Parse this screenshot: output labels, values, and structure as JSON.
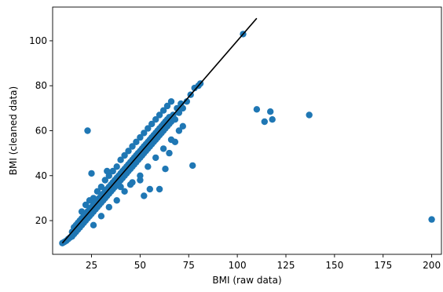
{
  "chart_data": {
    "type": "scatter",
    "title": "",
    "xlabel": "BMI (raw data)",
    "ylabel": "BMI (cleaned data)",
    "xlim": [
      5,
      205
    ],
    "ylim": [
      5,
      115
    ],
    "xticks": [
      25,
      50,
      75,
      100,
      125,
      150,
      175,
      200
    ],
    "yticks": [
      20,
      40,
      60,
      80,
      100
    ],
    "grid": false,
    "colors": {
      "points": "#1f77b4",
      "line": "#000000",
      "axes": "#000000"
    },
    "reference_line": {
      "x": [
        10,
        110
      ],
      "y": [
        10,
        110
      ]
    },
    "series": [
      {
        "values": [
          [
            10,
            10
          ],
          [
            11,
            10.5
          ],
          [
            12,
            11
          ],
          [
            13,
            11.8
          ],
          [
            14,
            12.5
          ],
          [
            15,
            13
          ],
          [
            15,
            15
          ],
          [
            16,
            14
          ],
          [
            16,
            17
          ],
          [
            17,
            15
          ],
          [
            17,
            18
          ],
          [
            18,
            16
          ],
          [
            18,
            19
          ],
          [
            19,
            17
          ],
          [
            19,
            20
          ],
          [
            20,
            18
          ],
          [
            20,
            21
          ],
          [
            21,
            19
          ],
          [
            21,
            22
          ],
          [
            22,
            20
          ],
          [
            22,
            23
          ],
          [
            23,
            21
          ],
          [
            23,
            24
          ],
          [
            24,
            22
          ],
          [
            24,
            25
          ],
          [
            25,
            23
          ],
          [
            25,
            26
          ],
          [
            26,
            24
          ],
          [
            26,
            27
          ],
          [
            27,
            25
          ],
          [
            27,
            28
          ],
          [
            28,
            26
          ],
          [
            28,
            29
          ],
          [
            29,
            27
          ],
          [
            29,
            30
          ],
          [
            30,
            28
          ],
          [
            30,
            31
          ],
          [
            31,
            29
          ],
          [
            31,
            32
          ],
          [
            32,
            30
          ],
          [
            32,
            33
          ],
          [
            33,
            31
          ],
          [
            33,
            34
          ],
          [
            34,
            32
          ],
          [
            34,
            35
          ],
          [
            35,
            33
          ],
          [
            35,
            36
          ],
          [
            36,
            34
          ],
          [
            36,
            37
          ],
          [
            37,
            35
          ],
          [
            37,
            38
          ],
          [
            38,
            36
          ],
          [
            38,
            39
          ],
          [
            39,
            37
          ],
          [
            39,
            40
          ],
          [
            40,
            38
          ],
          [
            40,
            41
          ],
          [
            41,
            39
          ],
          [
            41,
            42
          ],
          [
            42,
            40
          ],
          [
            42,
            43
          ],
          [
            43,
            41
          ],
          [
            43,
            44
          ],
          [
            44,
            42
          ],
          [
            44,
            45
          ],
          [
            45,
            43
          ],
          [
            45,
            46
          ],
          [
            46,
            44
          ],
          [
            46,
            47
          ],
          [
            47,
            45
          ],
          [
            47,
            48
          ],
          [
            48,
            46
          ],
          [
            48,
            49
          ],
          [
            49,
            47
          ],
          [
            49,
            50
          ],
          [
            50,
            48
          ],
          [
            50,
            51
          ],
          [
            51,
            49
          ],
          [
            51,
            52
          ],
          [
            52,
            50
          ],
          [
            52,
            53
          ],
          [
            53,
            51
          ],
          [
            53,
            54
          ],
          [
            54,
            52
          ],
          [
            54,
            55
          ],
          [
            55,
            53
          ],
          [
            55,
            56
          ],
          [
            56,
            54
          ],
          [
            56,
            57
          ],
          [
            57,
            55
          ],
          [
            57,
            58
          ],
          [
            58,
            56
          ],
          [
            58,
            59
          ],
          [
            59,
            57
          ],
          [
            59,
            60
          ],
          [
            60,
            58
          ],
          [
            60,
            61
          ],
          [
            61,
            59
          ],
          [
            61,
            62
          ],
          [
            62,
            60
          ],
          [
            62,
            63
          ],
          [
            63,
            61
          ],
          [
            63,
            64
          ],
          [
            64,
            62
          ],
          [
            64,
            65
          ],
          [
            65,
            63
          ],
          [
            65,
            66
          ],
          [
            66,
            64
          ],
          [
            67,
            67
          ],
          [
            68,
            65
          ],
          [
            69,
            70
          ],
          [
            70,
            68
          ],
          [
            71,
            72
          ],
          [
            72,
            70
          ],
          [
            74,
            73
          ],
          [
            76,
            76
          ],
          [
            78,
            79
          ],
          [
            80,
            80
          ],
          [
            81,
            81
          ],
          [
            20,
            24
          ],
          [
            22,
            27
          ],
          [
            24,
            29
          ],
          [
            26,
            30
          ],
          [
            28,
            33
          ],
          [
            30,
            35
          ],
          [
            32,
            38
          ],
          [
            34,
            40
          ],
          [
            36,
            42
          ],
          [
            38,
            44
          ],
          [
            40,
            47
          ],
          [
            42,
            49
          ],
          [
            44,
            51
          ],
          [
            46,
            53
          ],
          [
            48,
            55
          ],
          [
            50,
            57
          ],
          [
            52,
            59
          ],
          [
            54,
            61
          ],
          [
            56,
            63
          ],
          [
            58,
            65
          ],
          [
            60,
            67
          ],
          [
            62,
            69
          ],
          [
            64,
            71
          ],
          [
            66,
            73
          ],
          [
            26,
            18
          ],
          [
            30,
            22
          ],
          [
            34,
            26
          ],
          [
            38,
            29
          ],
          [
            42,
            33
          ],
          [
            46,
            37
          ],
          [
            50,
            40
          ],
          [
            54,
            44
          ],
          [
            58,
            48
          ],
          [
            62,
            52
          ],
          [
            66,
            56
          ],
          [
            70,
            60
          ],
          [
            23,
            60
          ],
          [
            25,
            41
          ],
          [
            33,
            42
          ],
          [
            40,
            35
          ],
          [
            45,
            36
          ],
          [
            50,
            38
          ],
          [
            52,
            31
          ],
          [
            55,
            34
          ],
          [
            60,
            34
          ],
          [
            63,
            43
          ],
          [
            65,
            50
          ],
          [
            68,
            55
          ],
          [
            72,
            62
          ],
          [
            77,
            44.5
          ],
          [
            103,
            103
          ],
          [
            110,
            69.5
          ],
          [
            114,
            64
          ],
          [
            117,
            68.5
          ],
          [
            118,
            65
          ],
          [
            137,
            67
          ],
          [
            200,
            20.5
          ]
        ]
      }
    ]
  }
}
